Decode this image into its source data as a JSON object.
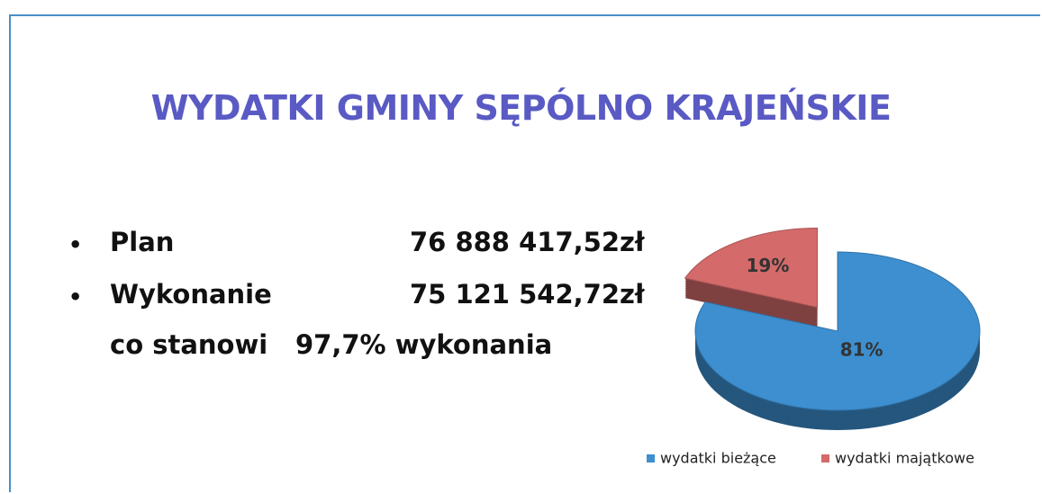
{
  "title": "WYDATKI GMINY SĘPÓLNO KRAJEŃSKIE",
  "items": [
    {
      "label": "Plan",
      "amount": "76 888 417,52zł"
    },
    {
      "label": "Wykonanie",
      "amount": "75 121 542,72zł"
    }
  ],
  "summary": {
    "label": "co stanowi",
    "text": "97,7% wykonania"
  },
  "chart_data": {
    "type": "pie",
    "categories": [
      "wydatki bieżące",
      "wydatki majątkowe"
    ],
    "values": [
      81,
      19
    ],
    "value_labels": [
      "81%",
      "19%"
    ],
    "colors": [
      "#3d8fd0",
      "#d46a6a"
    ],
    "legend": "bottom"
  }
}
